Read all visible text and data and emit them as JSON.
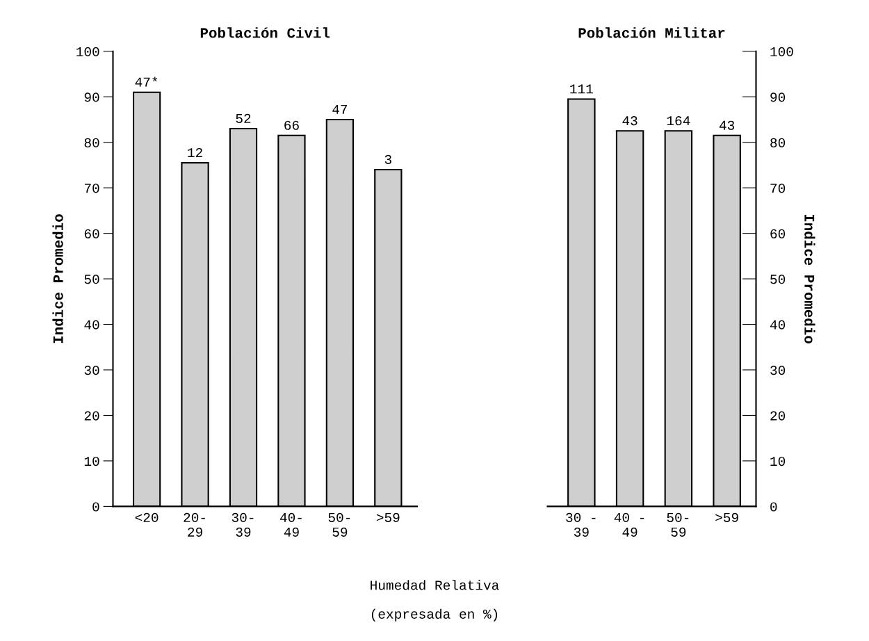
{
  "chart_data": [
    {
      "type": "bar",
      "title": "Población Civil",
      "ylabel": "Indice Promedio",
      "xlabel": "Humedad Relativa",
      "categories": [
        "<20",
        "20-\n29",
        "30-\n39",
        "40-\n49",
        "50-\n59",
        ">59"
      ],
      "values": [
        91,
        75.5,
        83,
        81.5,
        85,
        74
      ],
      "color": "#cfcfcf",
      "annotations": [
        {
          "text": "47*",
          "x": "<20",
          "y": 91
        },
        {
          "text": "12",
          "x": "20-\n29",
          "y": 75.5
        },
        {
          "text": "52",
          "x": "30-\n39",
          "y": 83
        },
        {
          "text": "66",
          "x": "40-\n49",
          "y": 81.5
        },
        {
          "text": "47",
          "x": "50-\n59",
          "y": 85
        },
        {
          "text": "3",
          "x": ">59",
          "y": 74
        },
        "(expresada en %)"
      ],
      "ylim": [
        0,
        100
      ],
      "yticks": [
        0,
        10,
        20,
        30,
        40,
        50,
        60,
        70,
        80,
        90,
        100
      ],
      "grid": false,
      "legend": false
    },
    {
      "type": "bar",
      "title": "Población Militar",
      "ylabel": "Indice Promedio",
      "categories": [
        "30 -\n39",
        "40 -\n49",
        "50-\n59",
        ">59"
      ],
      "values": [
        89.5,
        82.5,
        82.5,
        81.5
      ],
      "color": "#cfcfcf",
      "annotations": [
        {
          "text": "111",
          "x": "30 -\n39",
          "y": 89.5
        },
        {
          "text": "43",
          "x": "40 -\n49",
          "y": 82.5
        },
        {
          "text": "164",
          "x": "50-\n59",
          "y": 82.5
        },
        {
          "text": "43",
          "x": ">59",
          "y": 81.5
        }
      ],
      "ylim": [
        0,
        100
      ],
      "yticks": [
        0,
        10,
        20,
        30,
        40,
        50,
        60,
        70,
        80,
        90,
        100
      ],
      "grid": false,
      "legend": false
    }
  ]
}
